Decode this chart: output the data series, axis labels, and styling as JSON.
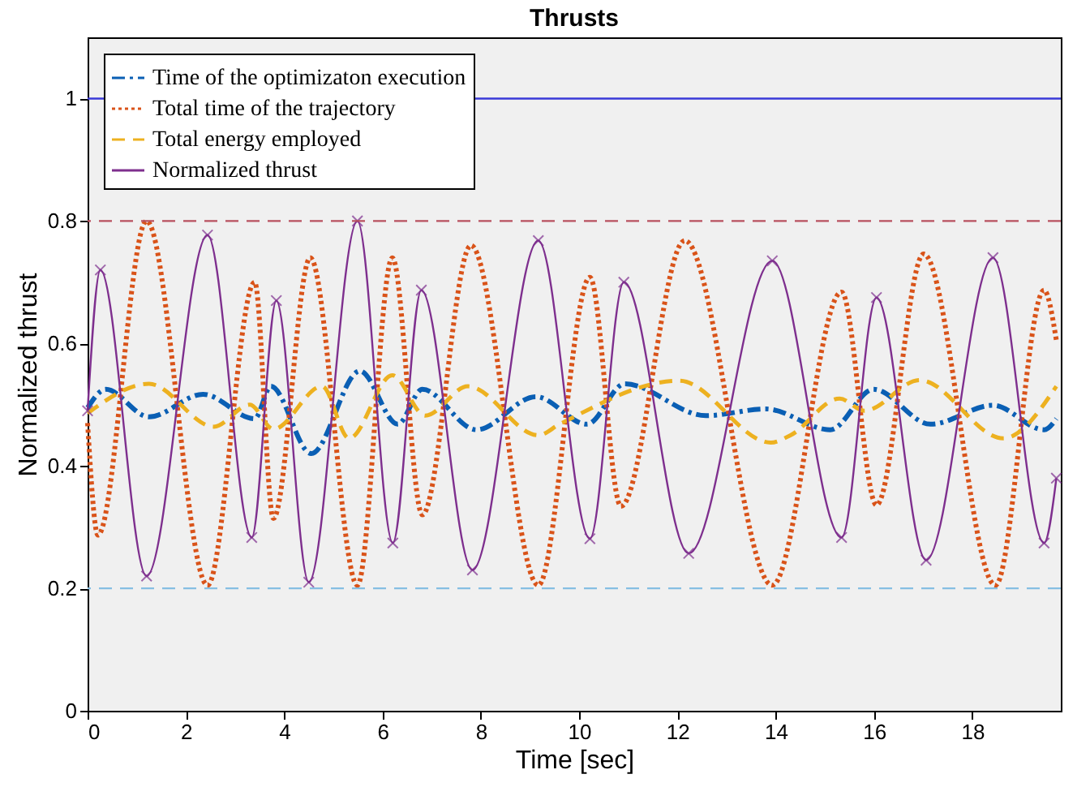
{
  "chart_data": {
    "type": "line",
    "title": "Thrusts",
    "xlabel": "Time [sec]",
    "ylabel": "Normalized thrust",
    "xlim": [
      0,
      19.8
    ],
    "xticks": [
      0,
      2,
      4,
      6,
      8,
      10,
      12,
      14,
      16,
      18
    ],
    "ylim": [
      0,
      1.1
    ],
    "yticks": [
      0,
      0.2,
      0.4,
      0.6,
      0.8,
      1
    ],
    "grid": false,
    "legend": "top left",
    "series": [
      {
        "name": "Time of the optimizaton execution",
        "color": "#0a5fb4",
        "line_style": "dashdot",
        "marker": "none",
        "x": [
          0,
          0.37,
          1.25,
          2.35,
          3.4,
          3.73,
          4.55,
          5.54,
          6.31,
          6.81,
          7.91,
          9.12,
          10.16,
          10.93,
          12.58,
          13.8,
          15.11,
          15.99,
          17.15,
          18.42,
          19.46,
          19.71
        ],
        "values": [
          0.495,
          0.525,
          0.48,
          0.517,
          0.477,
          0.53,
          0.42,
          0.555,
          0.468,
          0.525,
          0.459,
          0.513,
          0.468,
          0.534,
          0.482,
          0.493,
          0.459,
          0.525,
          0.468,
          0.499,
          0.459,
          0.477
        ]
      },
      {
        "name": "Total time of the trajectory",
        "color": "#d95319",
        "line_style": "dotted",
        "marker": "none",
        "x": [
          0,
          0.21,
          1.2,
          2.44,
          3.4,
          3.78,
          4.53,
          5.49,
          6.2,
          6.81,
          7.8,
          9.17,
          10.22,
          10.85,
          12.15,
          13.93,
          15.34,
          16.05,
          17.01,
          18.47,
          19.46,
          19.71
        ],
        "values": [
          0.47,
          0.287,
          0.8,
          0.205,
          0.7,
          0.314,
          0.74,
          0.205,
          0.74,
          0.32,
          0.76,
          0.205,
          0.708,
          0.334,
          0.768,
          0.205,
          0.684,
          0.336,
          0.746,
          0.205,
          0.687,
          0.605
        ]
      },
      {
        "name": "Total energy employed",
        "color": "#edb120",
        "line_style": "dashed",
        "marker": "none",
        "x": [
          0,
          1.25,
          2.57,
          3.3,
          3.78,
          4.77,
          5.32,
          6.2,
          6.87,
          7.74,
          9.17,
          9.6,
          12.04,
          13.9,
          14.3,
          15.3,
          15.8,
          16.93,
          18.63,
          19.71
        ],
        "values": [
          0.486,
          0.534,
          0.464,
          0.5,
          0.46,
          0.53,
          0.445,
          0.548,
          0.482,
          0.53,
          0.45,
          0.468,
          0.539,
          0.438,
          0.45,
          0.51,
          0.49,
          0.54,
          0.445,
          0.53
        ]
      },
      {
        "name": "Normalized thrust",
        "color": "#7e2f8e",
        "line_style": "solid",
        "marker": "cross",
        "x": [
          0,
          0.26,
          1.2,
          2.44,
          3.34,
          3.84,
          4.5,
          5.49,
          6.21,
          6.79,
          7.83,
          9.17,
          10.22,
          10.91,
          12.23,
          13.93,
          15.34,
          16.05,
          17.06,
          18.42,
          19.46,
          19.71
        ],
        "values": [
          0.49,
          0.72,
          0.22,
          0.777,
          0.283,
          0.67,
          0.21,
          0.8,
          0.274,
          0.687,
          0.23,
          0.768,
          0.281,
          0.7,
          0.257,
          0.735,
          0.283,
          0.675,
          0.246,
          0.74,
          0.274,
          0.38
        ]
      }
    ],
    "ref_lines": [
      {
        "axis": "y",
        "value": 1,
        "color": "#3a3ad8",
        "line_style": "solid"
      },
      {
        "axis": "y",
        "value": 0.8,
        "color": "#b8505e",
        "line_style": "dashed"
      },
      {
        "axis": "y",
        "value": 0.2,
        "color": "#86bfe3",
        "line_style": "dashed"
      }
    ]
  }
}
